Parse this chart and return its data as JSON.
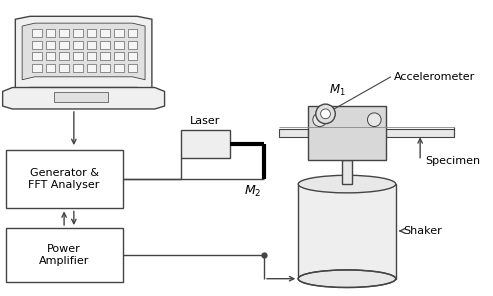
{
  "bg_color": "#ffffff",
  "line_color": "#444444",
  "fig_width": 4.93,
  "fig_height": 2.96,
  "dpi": 100,
  "labels": {
    "laser": "Laser",
    "generator": "Generator &\nFFT Analyser",
    "power_amp": "Power\nAmplifier",
    "m1": "$M_1$",
    "m2": "$M_2$",
    "accelerometer": "Accelerometer",
    "specimen": "Specimen",
    "shaker": "Shaker"
  }
}
